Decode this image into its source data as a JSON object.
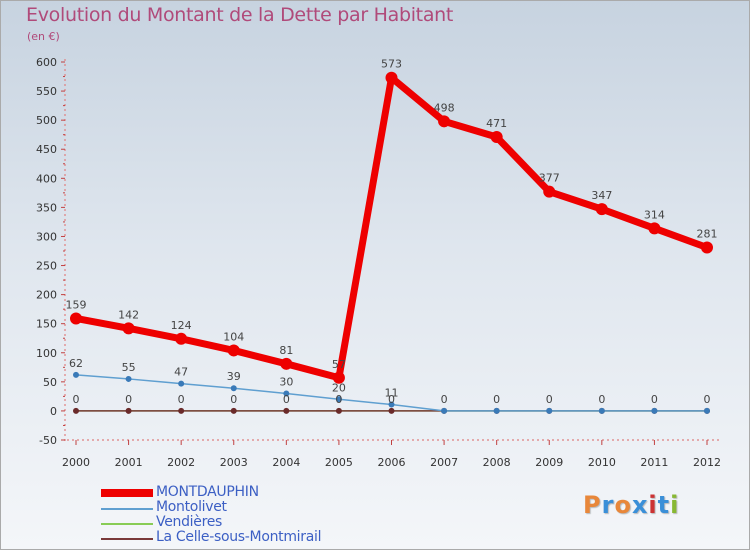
{
  "chart_title": "Evolution du Montant de la Dette par Habitant",
  "unit_label": "(en €)",
  "logo_text": "Proxiti",
  "chart_data": {
    "type": "line",
    "title": "Evolution du Montant de la Dette par Habitant",
    "ylabel": "(en €)",
    "xlabel": "",
    "ylim": [
      -50,
      600
    ],
    "yticks": [
      -50,
      0,
      50,
      100,
      150,
      200,
      250,
      300,
      350,
      400,
      450,
      500,
      550,
      600
    ],
    "ytick_labels": [
      "-50",
      "0",
      "50",
      "100",
      "150",
      "200",
      "250",
      "300",
      "350",
      "400",
      "450",
      "500",
      "550",
      "600"
    ],
    "categories": [
      "2000",
      "2001",
      "2002",
      "2003",
      "2004",
      "2005",
      "2006",
      "2007",
      "2008",
      "2009",
      "2010",
      "2011",
      "2012"
    ],
    "series": [
      {
        "name": "MONTDAUPHIN",
        "color": "#ee0000",
        "values": [
          159,
          142,
          124,
          104,
          81,
          57,
          573,
          498,
          471,
          377,
          347,
          314,
          281
        ],
        "labels": [
          "159",
          "142",
          "124",
          "104",
          "81",
          "57",
          "573",
          "498",
          "471",
          "377",
          "347",
          "314",
          "281"
        ]
      },
      {
        "name": "Montolivet",
        "color": "#5f9fd0",
        "values": [
          62,
          55,
          47,
          39,
          30,
          20,
          11,
          0,
          0,
          0,
          0,
          0,
          0
        ],
        "labels": [
          "62",
          "55",
          "47",
          "39",
          "30",
          "20",
          "11",
          "",
          "",
          "",
          "",
          "",
          ""
        ]
      },
      {
        "name": "Vendières",
        "color": "#88cc55",
        "values": [
          0,
          0,
          0,
          0,
          0,
          0,
          0,
          0,
          0,
          0,
          0,
          0,
          0
        ],
        "labels": [
          "",
          "",
          "",
          "",
          "",
          "",
          "",
          "",
          "",
          "",
          "",
          "",
          ""
        ]
      },
      {
        "name": "La Celle-sous-Montmirail",
        "color": "#7a3a3a",
        "values": [
          0,
          0,
          0,
          0,
          0,
          0,
          0,
          0,
          0,
          0,
          0,
          0,
          0
        ],
        "labels": [
          "0",
          "0",
          "0",
          "0",
          "0",
          "0",
          "0",
          "0",
          "0",
          "0",
          "0",
          "0",
          "0"
        ]
      }
    ],
    "grid": false,
    "legend_position": "bottom-left"
  }
}
